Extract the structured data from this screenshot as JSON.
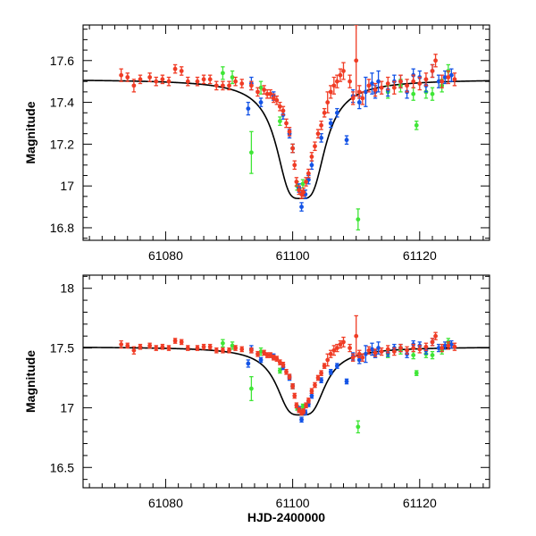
{
  "colors": {
    "red": "#f03c25",
    "blue": "#1454e6",
    "green": "#3fe636",
    "model": "#000000"
  },
  "chart_data": [
    {
      "type": "scatter",
      "panel": "top",
      "title": "",
      "xlabel": "",
      "ylabel": "Magnitude",
      "xlim": [
        61067,
        61131
      ],
      "ylim": [
        17.77,
        16.74
      ],
      "y_inverted": true,
      "xticks": [
        61080,
        61100,
        61120
      ],
      "xtick_labels": [
        "61080",
        "61100",
        "61120"
      ],
      "yticks": [
        16.8,
        17,
        17.2,
        17.4,
        17.6
      ],
      "ytick_labels": [
        "16.8",
        "17",
        "17.2",
        "17.4",
        "17.6"
      ],
      "model_curve": {
        "name": "microlensing model",
        "t0": 61101.3,
        "base": 17.51,
        "peak_mag": 16.94,
        "tE": 3.2
      },
      "series": [
        {
          "name": "red",
          "color": "red",
          "points": [
            {
              "x": 61073,
              "y": 17.53,
              "err": 0.03
            },
            {
              "x": 61074,
              "y": 17.52,
              "err": 0.02
            },
            {
              "x": 61075,
              "y": 17.48,
              "err": 0.03
            },
            {
              "x": 61076,
              "y": 17.51,
              "err": 0.02
            },
            {
              "x": 61077.5,
              "y": 17.52,
              "err": 0.02
            },
            {
              "x": 61078.5,
              "y": 17.5,
              "err": 0.02
            },
            {
              "x": 61079.5,
              "y": 17.51,
              "err": 0.02
            },
            {
              "x": 61080.5,
              "y": 17.5,
              "err": 0.02
            },
            {
              "x": 61081.5,
              "y": 17.56,
              "err": 0.02
            },
            {
              "x": 61082.5,
              "y": 17.55,
              "err": 0.02
            },
            {
              "x": 61083.5,
              "y": 17.5,
              "err": 0.02
            },
            {
              "x": 61085,
              "y": 17.5,
              "err": 0.02
            },
            {
              "x": 61086,
              "y": 17.51,
              "err": 0.02
            },
            {
              "x": 61087,
              "y": 17.51,
              "err": 0.02
            },
            {
              "x": 61088,
              "y": 17.48,
              "err": 0.02
            },
            {
              "x": 61089,
              "y": 17.48,
              "err": 0.02
            },
            {
              "x": 61090,
              "y": 17.48,
              "err": 0.02
            },
            {
              "x": 61091,
              "y": 17.5,
              "err": 0.02
            },
            {
              "x": 61092,
              "y": 17.49,
              "err": 0.02
            },
            {
              "x": 61093.5,
              "y": 17.48,
              "err": 0.02
            },
            {
              "x": 61094.5,
              "y": 17.45,
              "err": 0.02
            },
            {
              "x": 61095.5,
              "y": 17.46,
              "err": 0.02
            },
            {
              "x": 61096,
              "y": 17.44,
              "err": 0.02
            },
            {
              "x": 61096.5,
              "y": 17.44,
              "err": 0.02
            },
            {
              "x": 61097,
              "y": 17.42,
              "err": 0.02
            },
            {
              "x": 61097.5,
              "y": 17.41,
              "err": 0.02
            },
            {
              "x": 61098,
              "y": 17.38,
              "err": 0.02
            },
            {
              "x": 61098.5,
              "y": 17.36,
              "err": 0.02
            },
            {
              "x": 61099,
              "y": 17.3,
              "err": 0.02
            },
            {
              "x": 61099.5,
              "y": 17.26,
              "err": 0.02
            },
            {
              "x": 61100,
              "y": 17.18,
              "err": 0.02
            },
            {
              "x": 61100.3,
              "y": 17.1,
              "err": 0.02
            },
            {
              "x": 61100.6,
              "y": 17.02,
              "err": 0.02
            },
            {
              "x": 61101,
              "y": 16.98,
              "err": 0.02
            },
            {
              "x": 61101.4,
              "y": 16.96,
              "err": 0.02
            },
            {
              "x": 61101.7,
              "y": 16.97,
              "err": 0.02
            },
            {
              "x": 61102.1,
              "y": 17.02,
              "err": 0.02
            },
            {
              "x": 61102.5,
              "y": 17.06,
              "err": 0.02
            },
            {
              "x": 61103,
              "y": 17.14,
              "err": 0.02
            },
            {
              "x": 61103.5,
              "y": 17.19,
              "err": 0.02
            },
            {
              "x": 61104,
              "y": 17.25,
              "err": 0.02
            },
            {
              "x": 61104.5,
              "y": 17.29,
              "err": 0.02
            },
            {
              "x": 61105,
              "y": 17.35,
              "err": 0.02
            },
            {
              "x": 61105.5,
              "y": 17.4,
              "err": 0.05
            },
            {
              "x": 61106,
              "y": 17.45,
              "err": 0.03
            },
            {
              "x": 61106.5,
              "y": 17.48,
              "err": 0.04
            },
            {
              "x": 61107,
              "y": 17.5,
              "err": 0.03
            },
            {
              "x": 61107.5,
              "y": 17.53,
              "err": 0.03
            },
            {
              "x": 61108,
              "y": 17.55,
              "err": 0.04
            },
            {
              "x": 61109,
              "y": 17.5,
              "err": 0.03
            },
            {
              "x": 61109.5,
              "y": 17.42,
              "err": 0.03
            },
            {
              "x": 61110,
              "y": 17.6,
              "err": 0.17
            },
            {
              "x": 61110.5,
              "y": 17.45,
              "err": 0.03
            },
            {
              "x": 61111,
              "y": 17.42,
              "err": 0.03
            },
            {
              "x": 61112,
              "y": 17.48,
              "err": 0.03
            },
            {
              "x": 61113,
              "y": 17.46,
              "err": 0.03
            },
            {
              "x": 61114,
              "y": 17.47,
              "err": 0.03
            },
            {
              "x": 61115,
              "y": 17.49,
              "err": 0.03
            },
            {
              "x": 61116,
              "y": 17.47,
              "err": 0.03
            },
            {
              "x": 61117,
              "y": 17.5,
              "err": 0.03
            },
            {
              "x": 61118,
              "y": 17.48,
              "err": 0.03
            },
            {
              "x": 61119,
              "y": 17.5,
              "err": 0.03
            },
            {
              "x": 61120,
              "y": 17.49,
              "err": 0.03
            },
            {
              "x": 61121,
              "y": 17.51,
              "err": 0.03
            },
            {
              "x": 61122,
              "y": 17.55,
              "err": 0.03
            },
            {
              "x": 61122.5,
              "y": 17.6,
              "err": 0.03
            },
            {
              "x": 61123.5,
              "y": 17.5,
              "err": 0.03
            },
            {
              "x": 61124.5,
              "y": 17.52,
              "err": 0.03
            },
            {
              "x": 61125.5,
              "y": 17.51,
              "err": 0.03
            }
          ]
        },
        {
          "name": "blue",
          "color": "blue",
          "points": [
            {
              "x": 61093,
              "y": 17.37,
              "err": 0.03
            },
            {
              "x": 61093.5,
              "y": 17.49,
              "err": 0.03
            },
            {
              "x": 61095,
              "y": 17.4,
              "err": 0.02
            },
            {
              "x": 61097,
              "y": 17.43,
              "err": 0.02
            },
            {
              "x": 61098.5,
              "y": 17.34,
              "err": 0.02
            },
            {
              "x": 61099.5,
              "y": 17.25,
              "err": 0.02
            },
            {
              "x": 61100,
              "y": 17.18,
              "err": 0.02
            },
            {
              "x": 61101,
              "y": 16.99,
              "err": 0.02
            },
            {
              "x": 61101.4,
              "y": 16.9,
              "err": 0.02
            },
            {
              "x": 61102,
              "y": 16.96,
              "err": 0.02
            },
            {
              "x": 61102.5,
              "y": 17.03,
              "err": 0.02
            },
            {
              "x": 61103,
              "y": 17.1,
              "err": 0.02
            },
            {
              "x": 61104.5,
              "y": 17.23,
              "err": 0.02
            },
            {
              "x": 61106,
              "y": 17.3,
              "err": 0.02
            },
            {
              "x": 61107,
              "y": 17.35,
              "err": 0.02
            },
            {
              "x": 61108.5,
              "y": 17.22,
              "err": 0.02
            },
            {
              "x": 61109.5,
              "y": 17.43,
              "err": 0.03
            },
            {
              "x": 61110.5,
              "y": 17.4,
              "err": 0.03
            },
            {
              "x": 61111.5,
              "y": 17.45,
              "err": 0.07
            },
            {
              "x": 61112.5,
              "y": 17.49,
              "err": 0.05
            },
            {
              "x": 61113,
              "y": 17.45,
              "err": 0.03
            },
            {
              "x": 61113.5,
              "y": 17.5,
              "err": 0.05
            },
            {
              "x": 61115,
              "y": 17.46,
              "err": 0.03
            },
            {
              "x": 61116,
              "y": 17.5,
              "err": 0.03
            },
            {
              "x": 61117,
              "y": 17.5,
              "err": 0.03
            },
            {
              "x": 61118,
              "y": 17.45,
              "err": 0.03
            },
            {
              "x": 61119,
              "y": 17.53,
              "err": 0.03
            },
            {
              "x": 61120,
              "y": 17.52,
              "err": 0.03
            },
            {
              "x": 61121,
              "y": 17.48,
              "err": 0.03
            },
            {
              "x": 61122,
              "y": 17.55,
              "err": 0.03
            },
            {
              "x": 61123,
              "y": 17.5,
              "err": 0.03
            },
            {
              "x": 61124,
              "y": 17.52,
              "err": 0.03
            },
            {
              "x": 61125,
              "y": 17.53,
              "err": 0.03
            }
          ]
        },
        {
          "name": "green",
          "color": "green",
          "points": [
            {
              "x": 61089,
              "y": 17.54,
              "err": 0.03
            },
            {
              "x": 61090.5,
              "y": 17.52,
              "err": 0.03
            },
            {
              "x": 61093.5,
              "y": 17.16,
              "err": 0.1
            },
            {
              "x": 61095,
              "y": 17.47,
              "err": 0.03
            },
            {
              "x": 61098,
              "y": 17.31,
              "err": 0.02
            },
            {
              "x": 61100,
              "y": 17.18,
              "err": 0.02
            },
            {
              "x": 61100.7,
              "y": 17.0,
              "err": 0.02
            },
            {
              "x": 61101.6,
              "y": 17.01,
              "err": 0.02
            },
            {
              "x": 61110.3,
              "y": 16.84,
              "err": 0.05
            },
            {
              "x": 61115,
              "y": 17.45,
              "err": 0.03
            },
            {
              "x": 61117,
              "y": 17.48,
              "err": 0.03
            },
            {
              "x": 61119,
              "y": 17.44,
              "err": 0.03
            },
            {
              "x": 61119.5,
              "y": 17.29,
              "err": 0.02
            },
            {
              "x": 61121,
              "y": 17.45,
              "err": 0.03
            },
            {
              "x": 61122,
              "y": 17.44,
              "err": 0.03
            },
            {
              "x": 61123.5,
              "y": 17.48,
              "err": 0.03
            },
            {
              "x": 61124.5,
              "y": 17.55,
              "err": 0.03
            }
          ]
        }
      ]
    },
    {
      "type": "scatter",
      "panel": "bottom",
      "title": "",
      "xlabel": "HJD-2400000",
      "ylabel": "Magnitude",
      "xlim": [
        61067,
        61131
      ],
      "ylim": [
        18.11,
        16.33
      ],
      "y_inverted": true,
      "xticks": [
        61080,
        61100,
        61120
      ],
      "xtick_labels": [
        "61080",
        "61100",
        "61120"
      ],
      "yticks": [
        16.5,
        17,
        17.5,
        18
      ],
      "ytick_labels": [
        "16.5",
        "17",
        "17.5",
        "18"
      ],
      "same_points_as_panel": "top"
    }
  ]
}
